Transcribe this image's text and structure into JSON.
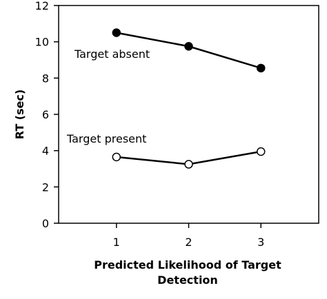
{
  "chart_data": {
    "type": "line",
    "x": [
      1,
      2,
      3
    ],
    "xlim": [
      0.2,
      3.8
    ],
    "ylim": [
      0,
      12
    ],
    "y_ticks": [
      0,
      2,
      4,
      6,
      8,
      10,
      12
    ],
    "x_ticks": [
      1,
      2,
      3
    ],
    "xlabel_line1": "Predicted Likelihood of Target",
    "xlabel_line2": "Detection",
    "ylabel": "RT (sec)",
    "grid": false,
    "series": [
      {
        "name": "Target absent",
        "values": [
          10.5,
          9.75,
          8.55
        ],
        "marker": "filled-circle",
        "color": "#000000"
      },
      {
        "name": "Target present",
        "values": [
          3.65,
          3.25,
          3.95
        ],
        "marker": "open-circle",
        "color": "#000000"
      }
    ]
  }
}
